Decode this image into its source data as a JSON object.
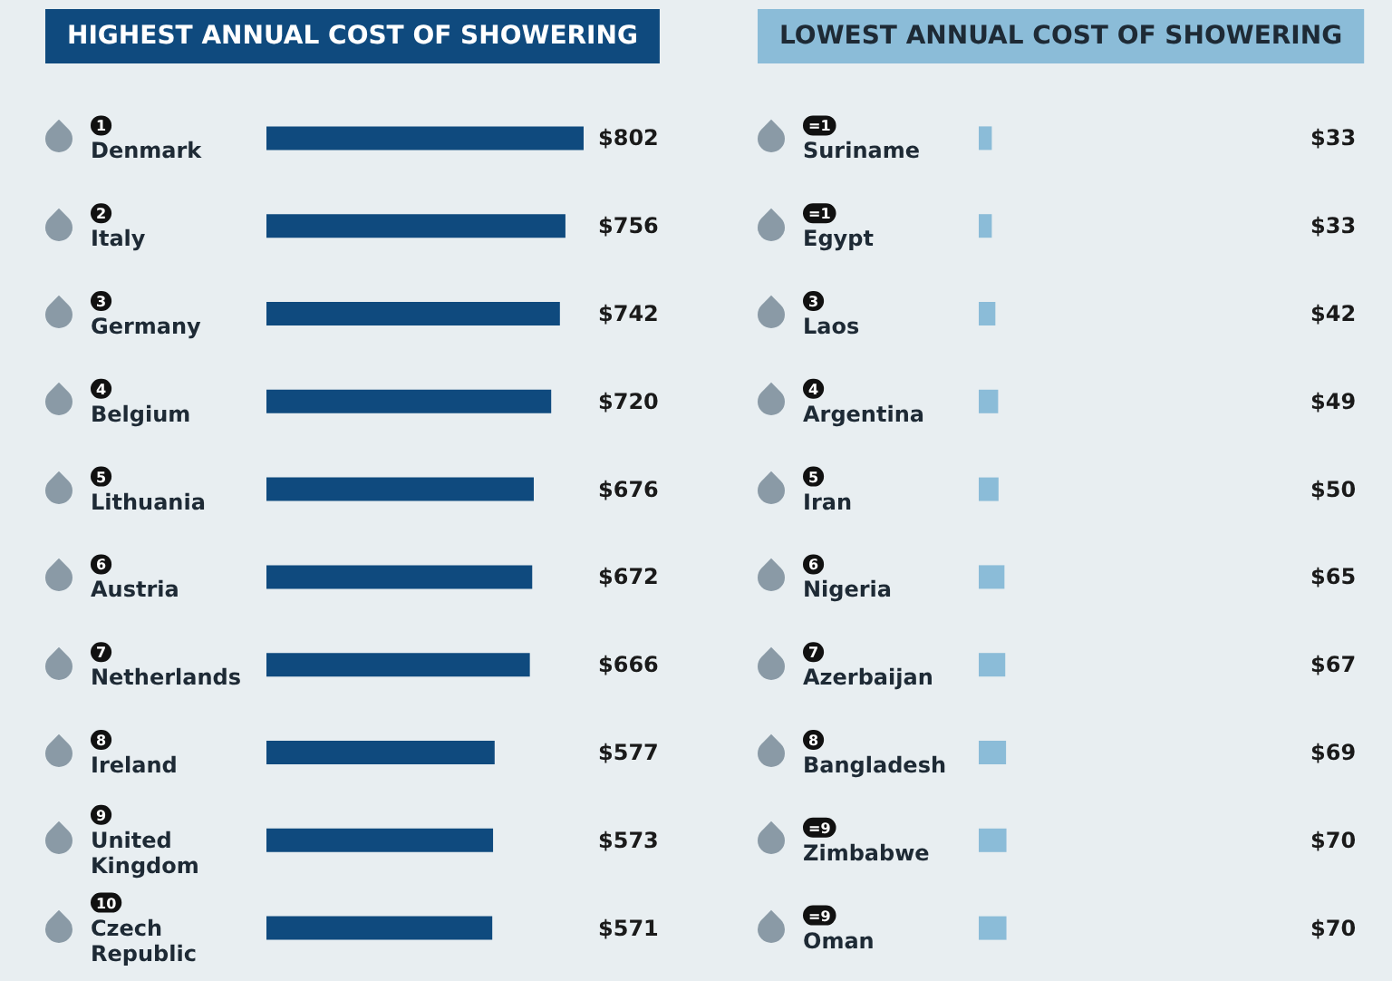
{
  "chart_data": [
    {
      "type": "bar",
      "orientation": "horizontal",
      "title": "HIGHEST ANNUAL COST OF SHOWERING",
      "categories": [
        "Denmark",
        "Italy",
        "Germany",
        "Belgium",
        "Lithuania",
        "Austria",
        "Netherlands",
        "Ireland",
        "United Kingdom",
        "Czech Republic"
      ],
      "annotations": [
        "1",
        "2",
        "3",
        "4",
        "5",
        "6",
        "7",
        "8",
        "9",
        "10"
      ],
      "series": [
        {
          "color": "#0f4a7e",
          "values": [
            802,
            756,
            742,
            720,
            676,
            672,
            666,
            577,
            573,
            571
          ],
          "value_labels": [
            "$802",
            "$756",
            "$742",
            "$720",
            "$676",
            "$672",
            "$666",
            "$577",
            "$573",
            "$571"
          ]
        }
      ]
    },
    {
      "type": "bar",
      "orientation": "horizontal",
      "title": "LOWEST ANNUAL COST OF SHOWERING",
      "categories": [
        "Suriname",
        "Egypt",
        "Laos",
        "Argentina",
        "Iran",
        "Nigeria",
        "Azerbaijan",
        "Bangladesh",
        "Zimbabwe",
        "Oman"
      ],
      "annotations": [
        "=1",
        "=1",
        "3",
        "4",
        "5",
        "6",
        "7",
        "8",
        "=9",
        "=9"
      ],
      "series": [
        {
          "color": "#8bbcd8",
          "values": [
            33,
            33,
            42,
            49,
            50,
            65,
            67,
            69,
            70,
            70
          ],
          "value_labels": [
            "$33",
            "$33",
            "$42",
            "$49",
            "$50",
            "$65",
            "$67",
            "$69",
            "$70",
            "$70"
          ]
        }
      ]
    }
  ]
}
